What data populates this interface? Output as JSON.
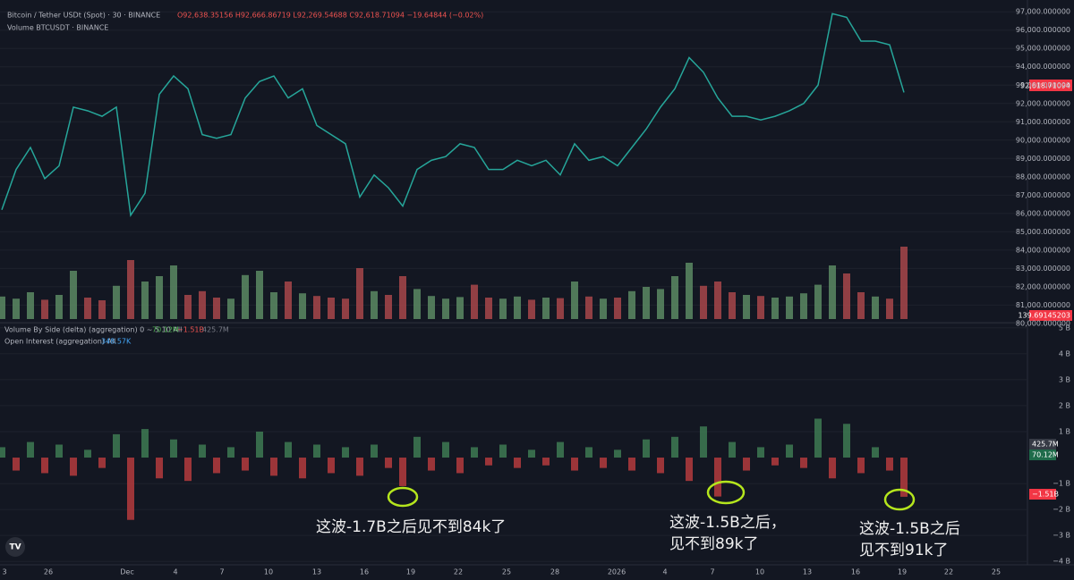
{
  "header": {
    "symbol": "Bitcoin / Tether USDt (Spot) · 30 · BINANCE",
    "ohlc": "O92,638.35156 H92,666.86719 L92,269.54688 C92,618.71094 −19.64844 (−0.02%)",
    "volume_label": "Volume BTCUSDT · BINANCE",
    "last_price": "92,618.71094",
    "last_volume": "139.69145203",
    "delta_label": "Volume By Side (delta) (aggregation) 0 ~ 5 10 All",
    "delta_vals": [
      "70.12M",
      "−1.51B",
      "425.7M"
    ],
    "oi_label": "Open Interest (aggregation) All",
    "oi_val": "348.57K",
    "badges": [
      "425.7M",
      "70.12M",
      "−1.51B"
    ]
  },
  "x_axis": {
    "labels": [
      "3",
      "26",
      "Dec",
      "4",
      "7",
      "10",
      "13",
      "16",
      "19",
      "22",
      "25",
      "28",
      "2026",
      "4",
      "7",
      "10",
      "13",
      "16",
      "19",
      "22",
      "25"
    ]
  },
  "annotations": [
    "这波-1.7B之后见不到84k了",
    "这波-1.5B之后，",
    "见不到89k了",
    "这波-1.5B之后",
    "见不到91k了"
  ],
  "chart_data": [
    {
      "type": "line",
      "color": "#26a69a",
      "values": [
        86200,
        88400,
        89600,
        87900,
        88600,
        91800,
        91600,
        91300,
        91800,
        85900,
        87100,
        92500,
        93500,
        92800,
        90300,
        90100,
        90300,
        92300,
        93200,
        93500,
        92300,
        92800,
        90800,
        90300,
        89800,
        86900,
        88100,
        87400,
        86400,
        88400,
        88900,
        89100,
        89800,
        89600,
        88400,
        88400,
        88900,
        88600,
        88900,
        88100,
        89800,
        88900,
        89100,
        88600,
        89600,
        90600,
        91800,
        92800,
        94500,
        93700,
        92300,
        91300,
        91300,
        91100,
        91300,
        91600,
        92000,
        93000,
        96900,
        96700,
        95400,
        95400,
        95200,
        92600
      ],
      "ylim": [
        79800,
        97400
      ],
      "yticks": [
        {
          "value": 97000,
          "label": "97,000.000000"
        },
        {
          "value": 96000,
          "label": "96,000.000000"
        },
        {
          "value": 95000,
          "label": "95,000.000000"
        },
        {
          "value": 94000,
          "label": "94,000.000000"
        },
        {
          "value": 93000,
          "label": "93,000.000000"
        },
        {
          "value": 92000,
          "label": "92,000.000000"
        },
        {
          "value": 91000,
          "label": "91,000.000000"
        },
        {
          "value": 90000,
          "label": "90,000.000000"
        },
        {
          "value": 89000,
          "label": "89,000.000000"
        },
        {
          "value": 88000,
          "label": "88,000.000000"
        },
        {
          "value": 87000,
          "label": "87,000.000000"
        },
        {
          "value": 86000,
          "label": "86,000.000000"
        },
        {
          "value": 85000,
          "label": "85,000.000000"
        },
        {
          "value": 84000,
          "label": "84,000.000000"
        },
        {
          "value": 83000,
          "label": "83,000.000000"
        },
        {
          "value": 82000,
          "label": "82,000.000000"
        },
        {
          "value": 81000,
          "label": "81,000.000000"
        },
        {
          "value": 80000,
          "label": "80,000.000000"
        }
      ]
    },
    {
      "type": "bar",
      "up_color": "#5c8a63",
      "down_color": "#a8464a",
      "values": [
        420,
        380,
        500,
        360,
        450,
        900,
        400,
        350,
        620,
        1100,
        700,
        800,
        1000,
        450,
        520,
        400,
        380,
        820,
        900,
        500,
        700,
        480,
        430,
        400,
        380,
        950,
        520,
        450,
        800,
        560,
        430,
        380,
        410,
        640,
        400,
        380,
        420,
        360,
        400,
        390,
        700,
        420,
        380,
        400,
        520,
        600,
        560,
        800,
        1050,
        620,
        700,
        500,
        450,
        430,
        400,
        420,
        480,
        640,
        1000,
        850,
        500,
        420,
        380,
        1350
      ],
      "ylim": [
        0,
        3000
      ]
    },
    {
      "type": "bar",
      "up_color": "#3e7a52",
      "down_color": "#b53b3d",
      "values": [
        0.4,
        -0.5,
        0.6,
        -0.6,
        0.5,
        -0.7,
        0.3,
        -0.4,
        0.9,
        -2.4,
        1.1,
        -0.8,
        0.7,
        -0.9,
        0.5,
        -0.6,
        0.4,
        -0.5,
        1.0,
        -0.7,
        0.6,
        -0.8,
        0.5,
        -0.6,
        0.4,
        -0.7,
        0.5,
        -0.4,
        -1.1,
        0.8,
        -0.5,
        0.6,
        -0.6,
        0.4,
        -0.3,
        0.5,
        -0.4,
        0.3,
        -0.3,
        0.6,
        -0.5,
        0.4,
        -0.4,
        0.3,
        -0.5,
        0.7,
        -0.6,
        0.8,
        -0.9,
        1.2,
        -1.5,
        0.6,
        -0.5,
        0.4,
        -0.3,
        0.5,
        -0.4,
        1.5,
        -0.8,
        1.3,
        -0.6,
        0.4,
        -0.5,
        -1.51
      ],
      "ylim": [
        -4.2,
        5.2
      ],
      "yticks": [
        {
          "value": 5,
          "label": "5 B"
        },
        {
          "value": 4,
          "label": "4 B"
        },
        {
          "value": 3,
          "label": "3 B"
        },
        {
          "value": 2,
          "label": "2 B"
        },
        {
          "value": 1,
          "label": "1 B"
        },
        {
          "value": -1,
          "label": "−1 B"
        },
        {
          "value": -2,
          "label": "−2 B"
        },
        {
          "value": -3,
          "label": "−3 B"
        },
        {
          "value": -4,
          "label": "−4 B"
        }
      ]
    }
  ]
}
